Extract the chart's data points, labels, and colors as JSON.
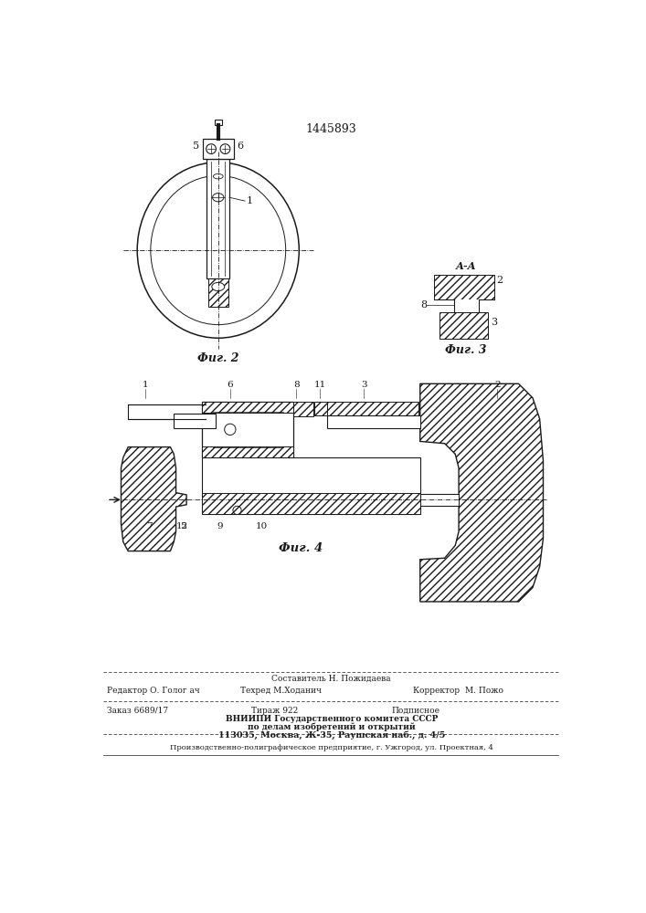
{
  "patent_number": "1445893",
  "fig2_caption": "Фиг. 2",
  "fig3_caption": "Фиг. 3",
  "fig4_caption": "Фиг. 4",
  "fig3_title": "А-А",
  "footer_line1_left": "Редактор О. Голог ач",
  "footer_line1_center": "Составитель Н. Пожидаева",
  "footer_line2_center": "Техред М.Ходанич",
  "footer_line2_right": "Корректор  М. Пожо",
  "footer_line3_left": "Заказ 6689/17",
  "footer_line3_center": "Тираж 922",
  "footer_line3_right": "Подписное",
  "footer_line4": "ВНИИПИ Государственного комитета СССР",
  "footer_line5": "по делам изобретений и открытий",
  "footer_line6": "113035, Москва, Ж-35, Раушская наб., д. 4/5",
  "footer_last": "Производственно-полиграфическое предприятие, г. Ужгород, ул. Проектная, 4"
}
